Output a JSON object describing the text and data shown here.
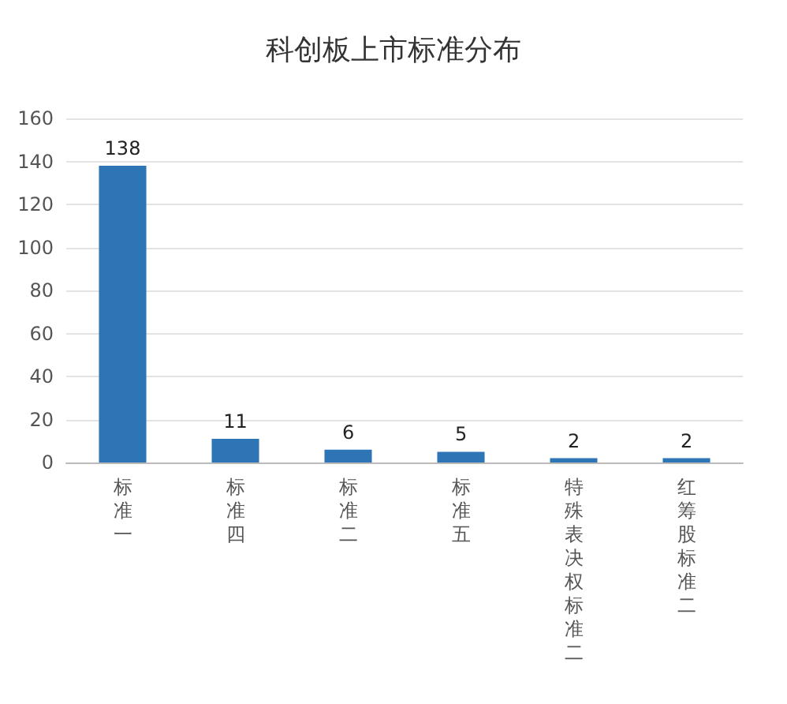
{
  "chart_data": {
    "type": "bar",
    "title": "科创板上市标准分布",
    "categories": [
      "标准一",
      "标准四",
      "标准二",
      "标准五",
      "特殊表决权标准二",
      "红筹股标准二"
    ],
    "values": [
      138,
      11,
      6,
      5,
      2,
      2
    ],
    "color": "#2e75b6",
    "ylim": [
      0,
      160
    ],
    "yticks": [
      0,
      20,
      40,
      60,
      80,
      100,
      120,
      140,
      160
    ],
    "grid": "y",
    "data_labels": true
  }
}
